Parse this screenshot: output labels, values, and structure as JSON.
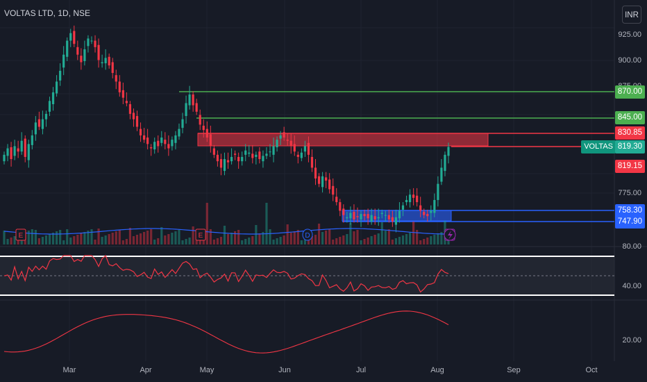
{
  "header": {
    "symbol": "VOLTAS LTD, 1D, NSE",
    "currency_button": "INR"
  },
  "colors": {
    "background": "#171b26",
    "up": "#22ab94",
    "down": "#f23645",
    "resistance": "#4caf50",
    "support": "#2962ff",
    "indicator_line": "#f23645",
    "volume_ma": "#2962ff"
  },
  "chart_data": [
    {
      "type": "candlestick",
      "symbol": "VOLTAS LTD",
      "interval": "1D",
      "exchange": "NSE",
      "y_ticks": [
        "925.00",
        "900.00",
        "875.00",
        "775.00"
      ],
      "ylim": [
        750,
        935
      ],
      "x_ticks": [
        "Mar",
        "Apr",
        "May",
        "Jun",
        "Jul",
        "Aug",
        "Sep",
        "Oct"
      ],
      "price_lines": [
        {
          "value": 870.0,
          "label": "870.00",
          "color": "#4caf50"
        },
        {
          "value": 845.0,
          "label": "845.00",
          "color": "#4caf50"
        },
        {
          "value": 830.85,
          "label": "830.85",
          "color": "#f23645"
        },
        {
          "value": 819.15,
          "label": "819.15",
          "color": "#f23645"
        },
        {
          "value": 758.3,
          "label": "758.30",
          "color": "#2962ff"
        },
        {
          "value": 747.9,
          "label": "747.90",
          "color": "#2962ff"
        }
      ],
      "last_price": {
        "ticker": "VOLTAS",
        "value": "819.30"
      },
      "zones": [
        {
          "type": "resistance",
          "from": 819.15,
          "to": 830.85,
          "color": "#f23645"
        },
        {
          "type": "support",
          "from": 747.9,
          "to": 758.3,
          "color": "#2962ff"
        }
      ],
      "closes": [
        812,
        818,
        808,
        820,
        815,
        825,
        810,
        822,
        830,
        842,
        838,
        845,
        850,
        862,
        870,
        880,
        890,
        905,
        918,
        925,
        915,
        905,
        898,
        910,
        920,
        918,
        912,
        900,
        898,
        902,
        895,
        888,
        880,
        870,
        865,
        860,
        850,
        845,
        838,
        830,
        826,
        822,
        818,
        824,
        820,
        828,
        822,
        818,
        826,
        830,
        836,
        845,
        860,
        868,
        858,
        852,
        840,
        835,
        828,
        820,
        812,
        806,
        800,
        808,
        805,
        810,
        812,
        806,
        810,
        816,
        814,
        809,
        812,
        808,
        811,
        813,
        815,
        820,
        826,
        830,
        828,
        825,
        820,
        815,
        810,
        814,
        820,
        812,
        800,
        790,
        785,
        792,
        788,
        780,
        775,
        768,
        760,
        756,
        754,
        758,
        752,
        754,
        757,
        755,
        753,
        756,
        752,
        754,
        758,
        756,
        752,
        750,
        754,
        760,
        765,
        770,
        775,
        772,
        768,
        760,
        756,
        755,
        760,
        770,
        785,
        800,
        812,
        819.3
      ],
      "event_markers": [
        "E",
        "E",
        "D",
        "E"
      ]
    },
    {
      "type": "line",
      "indicator": "oscillator",
      "y_ticks": [
        "80.00",
        "40.00"
      ],
      "ylim": [
        20,
        90
      ]
    },
    {
      "type": "line",
      "indicator": "lower",
      "y_ticks": [
        "20.00"
      ]
    }
  ]
}
